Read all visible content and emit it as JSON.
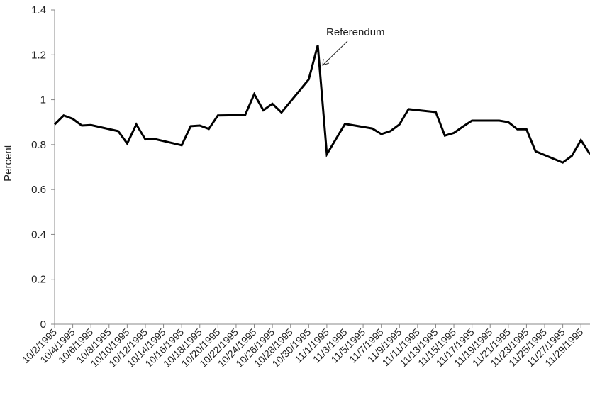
{
  "chart_data": {
    "type": "line",
    "y_label": "Percent",
    "annotation": "Referendum",
    "x": [
      "10/2/1995",
      "10/3/1995",
      "10/4/1995",
      "10/5/1995",
      "10/6/1995",
      "10/9/1995",
      "10/10/1995",
      "10/11/1995",
      "10/12/1995",
      "10/13/1995",
      "10/16/1995",
      "10/17/1995",
      "10/18/1995",
      "10/19/1995",
      "10/20/1995",
      "10/23/1995",
      "10/24/1995",
      "10/25/1995",
      "10/26/1995",
      "10/27/1995",
      "10/30/1995",
      "10/31/1995",
      "11/1/1995",
      "11/3/1995",
      "11/6/1995",
      "11/7/1995",
      "11/8/1995",
      "11/9/1995",
      "11/10/1995",
      "11/13/1995",
      "11/14/1995",
      "11/15/1995",
      "11/16/1995",
      "11/17/1995",
      "11/20/1995",
      "11/21/1995",
      "11/22/1995",
      "11/23/1995",
      "11/24/1995",
      "11/27/1995",
      "11/28/1995",
      "11/29/1995",
      "11/30/1995"
    ],
    "series": [
      {
        "color": "#000000",
        "values": [
          0.89,
          0.93,
          0.915,
          0.885,
          0.887,
          0.86,
          0.805,
          0.89,
          0.823,
          0.825,
          0.797,
          0.882,
          0.885,
          0.87,
          0.93,
          0.932,
          1.025,
          0.953,
          0.982,
          0.943,
          1.09,
          1.243,
          0.757,
          0.892,
          0.872,
          0.847,
          0.86,
          0.89,
          0.958,
          0.945,
          0.84,
          0.852,
          0.88,
          0.907,
          0.907,
          0.9,
          0.868,
          0.868,
          0.77,
          0.72,
          0.75,
          0.82,
          0.757
        ]
      }
    ],
    "xlim": [
      "10/2/1995",
      "11/30/1995"
    ],
    "xticks": [
      "10/2/1995",
      "10/4/1995",
      "10/6/1995",
      "10/8/1995",
      "10/10/1995",
      "10/12/1995",
      "10/14/1995",
      "10/16/1995",
      "10/18/1995",
      "10/20/1995",
      "10/22/1995",
      "10/24/1995",
      "10/26/1995",
      "10/28/1995",
      "10/30/1995",
      "11/1/1995",
      "11/3/1995",
      "11/5/1995",
      "11/7/1995",
      "11/9/1995",
      "11/11/1995",
      "11/13/1995",
      "11/15/1995",
      "11/17/1995",
      "11/19/1995",
      "11/21/1995",
      "11/23/1995",
      "11/25/1995",
      "11/27/1995",
      "11/29/1995"
    ],
    "ylim": [
      0,
      1.4
    ],
    "yticks": [
      0,
      0.2,
      0.4,
      0.6,
      0.8,
      1,
      1.2,
      1.4
    ],
    "grid": false
  }
}
